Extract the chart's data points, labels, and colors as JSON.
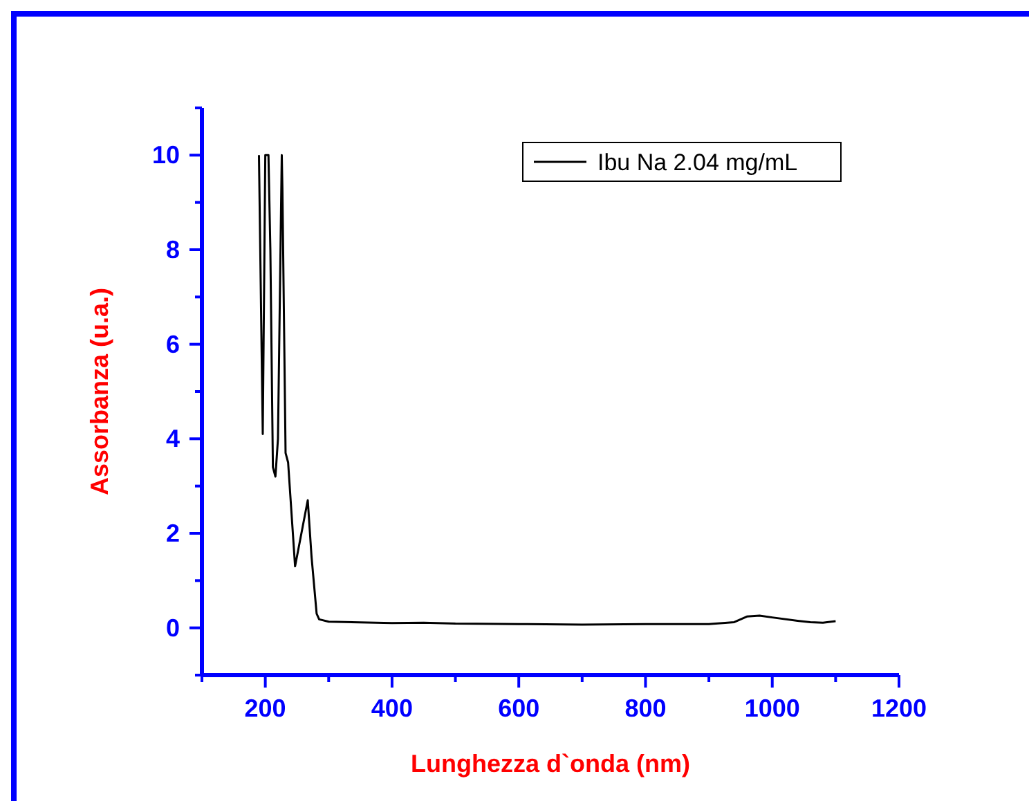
{
  "chart_data": {
    "type": "line",
    "xlabel": "Lunghezza d`onda (nm)",
    "ylabel": "Assorbanza (u.a.)",
    "xlim": [
      100,
      1200
    ],
    "xticks": [
      {
        "value": 100,
        "label": null
      },
      200,
      {
        "value": 300,
        "label": null
      },
      400,
      {
        "value": 500,
        "label": null
      },
      600,
      {
        "value": 700,
        "label": null
      },
      800,
      {
        "value": 900,
        "label": null
      },
      1000,
      {
        "value": 1100,
        "label": null
      },
      1200
    ],
    "ylim": [
      -1,
      11
    ],
    "yticks": [
      {
        "value": -1,
        "label": null
      },
      0,
      {
        "value": 1,
        "label": null
      },
      2,
      {
        "value": 3,
        "label": null
      },
      4,
      {
        "value": 5,
        "label": null
      },
      6,
      {
        "value": 7,
        "label": null
      },
      8,
      {
        "value": 9,
        "label": null
      },
      10,
      {
        "value": 11,
        "label": null
      }
    ],
    "grid": false,
    "legend": "top right",
    "marker": "none",
    "line_style": "solid",
    "series": [
      {
        "name": "Ibu Na 2.04 mg/mL",
        "color": "#000000",
        "x": [
          190,
          196,
          200,
          205,
          208,
          212,
          216,
          220,
          226,
          227,
          232,
          236,
          247,
          267,
          273,
          281,
          285,
          300,
          400,
          450,
          500,
          600,
          700,
          800,
          900,
          940,
          960,
          980,
          1000,
          1040,
          1060,
          1080,
          1100
        ],
        "values": [
          10,
          4.1,
          10,
          10,
          8,
          3.4,
          3.2,
          4,
          10,
          9.3,
          3.7,
          3.5,
          1.3,
          2.7,
          1.5,
          0.3,
          0.18,
          0.13,
          0.1,
          0.11,
          0.09,
          0.08,
          0.07,
          0.08,
          0.08,
          0.12,
          0.24,
          0.26,
          0.22,
          0.15,
          0.12,
          0.11,
          0.14
        ]
      }
    ]
  }
}
